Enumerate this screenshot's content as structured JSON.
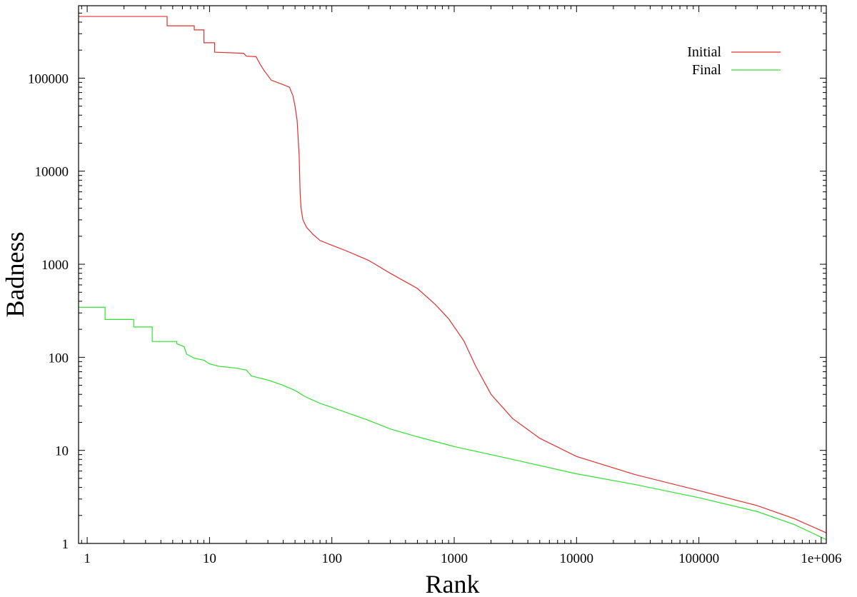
{
  "chart_data": {
    "type": "line",
    "title": "",
    "xlabel": "Rank",
    "ylabel": "Badness",
    "xscale": "log",
    "yscale": "log",
    "xlim": [
      0.85,
      1100000
    ],
    "ylim": [
      1,
      600000
    ],
    "grid": false,
    "legend_position": "top-right",
    "x_ticks": [
      1,
      10,
      100,
      1000,
      10000,
      100000,
      1000000
    ],
    "x_tick_labels": [
      "1",
      "10",
      "100",
      "1000",
      "10000",
      "100000",
      "1e+006"
    ],
    "y_ticks": [
      1,
      10,
      100,
      1000,
      10000,
      100000
    ],
    "y_tick_labels": [
      "1",
      "10",
      "100",
      "1000",
      "10000",
      "100000"
    ],
    "series": [
      {
        "name": "Initial",
        "color": "#e03030",
        "step": false,
        "points": [
          [
            0.85,
            460000
          ],
          [
            4.5,
            460000
          ],
          [
            4.5,
            365000
          ],
          [
            7.5,
            365000
          ],
          [
            7.5,
            330000
          ],
          [
            9.0,
            330000
          ],
          [
            9.0,
            240000
          ],
          [
            11.0,
            240000
          ],
          [
            11.0,
            190000
          ],
          [
            19.0,
            185000
          ],
          [
            20.0,
            172000
          ],
          [
            24.0,
            170000
          ],
          [
            26.0,
            140000
          ],
          [
            28.0,
            120000
          ],
          [
            32.0,
            95000
          ],
          [
            40.0,
            85000
          ],
          [
            45.0,
            80000
          ],
          [
            48.0,
            65000
          ],
          [
            50.0,
            50000
          ],
          [
            52.0,
            35000
          ],
          [
            54.0,
            15000
          ],
          [
            55.0,
            6000
          ],
          [
            56.0,
            4000
          ],
          [
            58.0,
            3000
          ],
          [
            62.0,
            2500
          ],
          [
            70.0,
            2100
          ],
          [
            80.0,
            1800
          ],
          [
            100.0,
            1600
          ],
          [
            130.0,
            1400
          ],
          [
            200.0,
            1100
          ],
          [
            300.0,
            800
          ],
          [
            500.0,
            550
          ],
          [
            700.0,
            370
          ],
          [
            900.0,
            260
          ],
          [
            1200.0,
            150
          ],
          [
            1500.0,
            80
          ],
          [
            2000.0,
            40
          ],
          [
            3000.0,
            22
          ],
          [
            5000.0,
            13.5
          ],
          [
            10000.0,
            8.6
          ],
          [
            30000.0,
            5.5
          ],
          [
            100000.0,
            3.7
          ],
          [
            300000.0,
            2.55
          ],
          [
            600000.0,
            1.85
          ],
          [
            1100000.0,
            1.3
          ]
        ]
      },
      {
        "name": "Final",
        "color": "#30e030",
        "step": false,
        "points": [
          [
            0.85,
            345
          ],
          [
            1.4,
            345
          ],
          [
            1.4,
            255
          ],
          [
            2.4,
            255
          ],
          [
            2.4,
            212
          ],
          [
            3.4,
            212
          ],
          [
            3.4,
            148
          ],
          [
            5.4,
            148
          ],
          [
            5.4,
            140
          ],
          [
            6.2,
            130
          ],
          [
            6.5,
            108
          ],
          [
            7.5,
            98
          ],
          [
            9.0,
            93
          ],
          [
            10.0,
            85
          ],
          [
            12.0,
            80
          ],
          [
            16.0,
            77
          ],
          [
            20.0,
            73
          ],
          [
            22.0,
            63
          ],
          [
            30.0,
            57
          ],
          [
            40.0,
            50
          ],
          [
            50.0,
            44
          ],
          [
            60.0,
            38
          ],
          [
            80.0,
            32
          ],
          [
            100.0,
            29
          ],
          [
            150.0,
            24
          ],
          [
            200.0,
            21
          ],
          [
            300.0,
            17
          ],
          [
            500.0,
            14
          ],
          [
            1000.0,
            11
          ],
          [
            3000.0,
            8
          ],
          [
            10000.0,
            5.6
          ],
          [
            30000.0,
            4.3
          ],
          [
            100000.0,
            3.1
          ],
          [
            300000.0,
            2.2
          ],
          [
            600000.0,
            1.6
          ],
          [
            1100000.0,
            1.1
          ]
        ]
      }
    ]
  }
}
